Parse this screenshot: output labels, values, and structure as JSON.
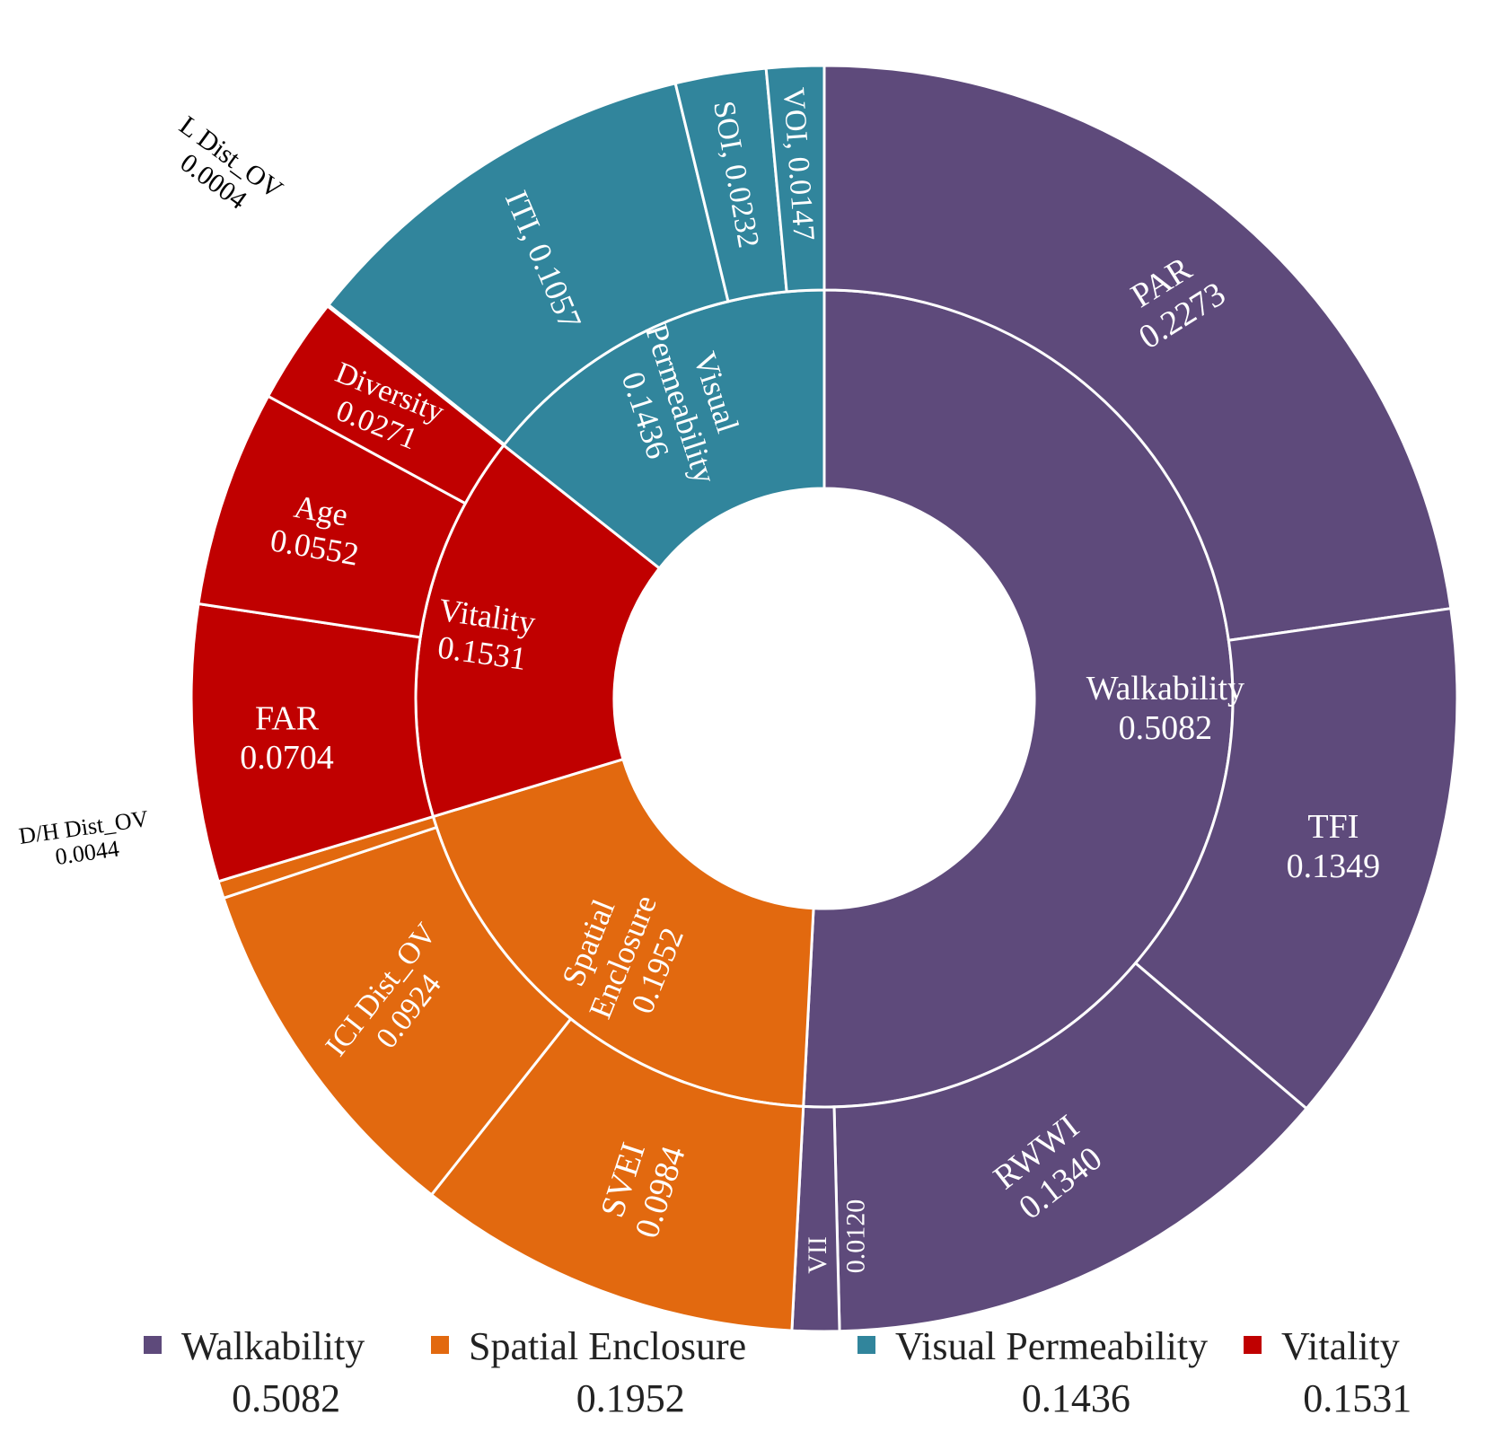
{
  "chart_data": {
    "type": "sunburst",
    "title": "",
    "categories": [
      {
        "name": "Walkability",
        "value": 0.5082,
        "value_label": "0.5082",
        "color": "#5e4a7b",
        "children": [
          {
            "name": "PAR",
            "value": 0.2273,
            "value_label": "0.2273"
          },
          {
            "name": "TFI",
            "value": 0.1349,
            "value_label": "0.1349"
          },
          {
            "name": "RWWI",
            "value": 0.134,
            "value_label": "0.1340"
          },
          {
            "name": "VII",
            "value": 0.012,
            "value_label": "0.0120"
          }
        ]
      },
      {
        "name": "Spatial Enclosure",
        "value": 0.1952,
        "value_label": "0.1952",
        "color": "#e2690f",
        "children": [
          {
            "name": "SVEI",
            "value": 0.0984,
            "value_label": "0.0984"
          },
          {
            "name": "ICI Dist_OV",
            "value": 0.0924,
            "value_label": "0.0924"
          },
          {
            "name": "D/H Dist_OV",
            "value": 0.0044,
            "value_label": "0.0044"
          }
        ]
      },
      {
        "name": "Vitality",
        "value": 0.1531,
        "value_label": "0.1531",
        "color": "#c00000",
        "children": [
          {
            "name": "FAR",
            "value": 0.0704,
            "value_label": "0.0704"
          },
          {
            "name": "Age",
            "value": 0.0552,
            "value_label": "0.0552"
          },
          {
            "name": "Diversity",
            "value": 0.0271,
            "value_label": "0.0271"
          }
        ]
      },
      {
        "name": "Visual Permeability",
        "value": 0.1436,
        "value_label": "0.1436",
        "color": "#31859c",
        "children": [
          {
            "name": "L Dist_OV",
            "value": 0.0004,
            "value_label": "0.0004"
          },
          {
            "name": "ITI",
            "value": 0.1057,
            "value_label": "0.1057"
          },
          {
            "name": "SOI",
            "value": 0.0232,
            "value_label": "0.0232"
          },
          {
            "name": "VOI",
            "value": 0.0147,
            "value_label": "0.0147"
          }
        ]
      }
    ],
    "legend": {
      "position": "bottom",
      "items": [
        {
          "name": "Walkability",
          "value_label": "0.5082",
          "color": "#5e4a7b"
        },
        {
          "name": "Spatial Enclosure",
          "value_label": "0.1952",
          "color": "#e2690f"
        },
        {
          "name": "Visual Permeability",
          "value_label": "0.1436",
          "color": "#31859c"
        },
        {
          "name": "Vitality",
          "value_label": "0.1531",
          "color": "#c00000"
        }
      ]
    }
  }
}
